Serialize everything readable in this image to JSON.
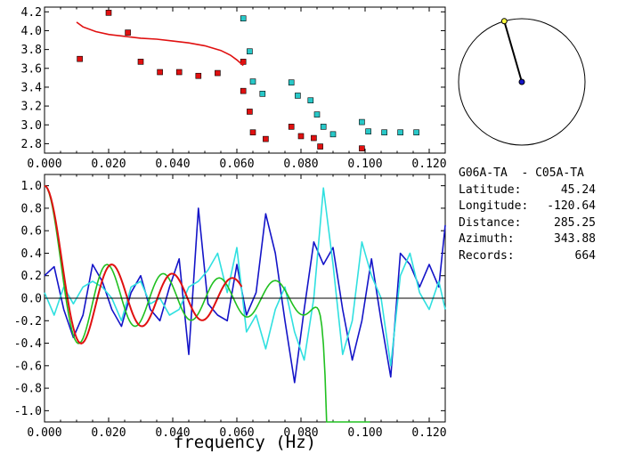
{
  "chart_data": [
    {
      "type": "scatter",
      "xlim": [
        0.0,
        0.125
      ],
      "ylim": [
        2.7,
        4.25
      ],
      "xticks": [
        "0.000",
        "0.020",
        "0.040",
        "0.060",
        "0.080",
        "0.100",
        "0.120"
      ],
      "yticks": [
        "4.2",
        "4.0",
        "3.8",
        "3.6",
        "3.4",
        "3.2",
        "3.0",
        "2.8"
      ],
      "ytick_values": [
        4.2,
        4.0,
        3.8,
        3.6,
        3.4,
        3.2,
        3.0,
        2.8
      ],
      "xtick_values": [
        0.0,
        0.02,
        0.04,
        0.06,
        0.08,
        0.1,
        0.12
      ],
      "series": [
        {
          "color": "#e01010",
          "marker": "square",
          "points": [
            [
              0.011,
              3.7
            ],
            [
              0.02,
              4.19
            ],
            [
              0.026,
              3.98
            ],
            [
              0.03,
              3.67
            ],
            [
              0.036,
              3.56
            ],
            [
              0.042,
              3.56
            ],
            [
              0.048,
              3.52
            ],
            [
              0.054,
              3.55
            ],
            [
              0.062,
              3.67
            ],
            [
              0.062,
              3.36
            ],
            [
              0.064,
              3.14
            ],
            [
              0.065,
              2.92
            ],
            [
              0.069,
              2.85
            ],
            [
              0.077,
              2.98
            ],
            [
              0.08,
              2.88
            ],
            [
              0.084,
              2.86
            ],
            [
              0.086,
              2.77
            ],
            [
              0.099,
              2.75
            ]
          ]
        },
        {
          "color": "#28c8c8",
          "marker": "square",
          "points": [
            [
              0.062,
              4.13
            ],
            [
              0.064,
              3.78
            ],
            [
              0.065,
              3.46
            ],
            [
              0.068,
              3.33
            ],
            [
              0.077,
              3.45
            ],
            [
              0.079,
              3.31
            ],
            [
              0.083,
              3.26
            ],
            [
              0.085,
              3.11
            ],
            [
              0.087,
              2.98
            ],
            [
              0.09,
              2.9
            ],
            [
              0.099,
              3.03
            ],
            [
              0.101,
              2.93
            ],
            [
              0.106,
              2.92
            ],
            [
              0.111,
              2.92
            ],
            [
              0.116,
              2.92
            ]
          ]
        },
        {
          "color": "#e01010",
          "marker": "line",
          "points": [
            [
              0.01,
              4.09
            ],
            [
              0.012,
              4.04
            ],
            [
              0.016,
              3.99
            ],
            [
              0.02,
              3.96
            ],
            [
              0.025,
              3.94
            ],
            [
              0.03,
              3.92
            ],
            [
              0.035,
              3.91
            ],
            [
              0.04,
              3.89
            ],
            [
              0.045,
              3.87
            ],
            [
              0.05,
              3.84
            ],
            [
              0.055,
              3.79
            ],
            [
              0.058,
              3.74
            ],
            [
              0.06,
              3.69
            ],
            [
              0.062,
              3.63
            ]
          ]
        }
      ]
    },
    {
      "type": "line",
      "xlim": [
        0.0,
        0.125
      ],
      "ylim": [
        -1.1,
        1.1
      ],
      "xlabel": "frequency (Hz)",
      "xticks": [
        "0.000",
        "0.020",
        "0.040",
        "0.060",
        "0.080",
        "0.100",
        "0.120"
      ],
      "xtick_values": [
        0.0,
        0.02,
        0.04,
        0.06,
        0.08,
        0.1,
        0.12
      ],
      "yticks": [
        "1.0",
        "0.8",
        "0.6",
        "0.4",
        "0.2",
        "0.0",
        "-0.2",
        "-0.4",
        "-0.6",
        "-0.8",
        "-1.0"
      ],
      "ytick_values": [
        1.0,
        0.8,
        0.6,
        0.4,
        0.2,
        0.0,
        -0.2,
        -0.4,
        -0.6,
        -0.8,
        -1.0
      ],
      "series": [
        {
          "color": "#1414c8",
          "x": [
            0.0,
            0.003,
            0.006,
            0.009,
            0.012,
            0.015,
            0.018,
            0.021,
            0.024,
            0.027,
            0.03,
            0.033,
            0.036,
            0.039,
            0.042,
            0.045,
            0.048,
            0.051,
            0.054,
            0.057,
            0.06,
            0.063,
            0.066,
            0.069,
            0.072,
            0.075,
            0.078,
            0.081,
            0.084,
            0.087,
            0.09,
            0.093,
            0.096,
            0.099,
            0.102,
            0.105,
            0.108,
            0.111,
            0.114,
            0.117,
            0.12,
            0.123,
            0.125
          ],
          "y": [
            0.2,
            0.28,
            -0.1,
            -0.35,
            -0.15,
            0.3,
            0.15,
            -0.1,
            -0.25,
            0.05,
            0.2,
            -0.1,
            -0.2,
            0.1,
            0.35,
            -0.5,
            0.8,
            -0.05,
            -0.15,
            -0.2,
            0.3,
            -0.15,
            0.05,
            0.75,
            0.4,
            -0.2,
            -0.75,
            -0.1,
            0.5,
            0.3,
            0.45,
            -0.1,
            -0.55,
            -0.2,
            0.35,
            -0.2,
            -0.7,
            0.4,
            0.3,
            0.1,
            0.3,
            0.1,
            0.65
          ]
        },
        {
          "color": "#30e0e0",
          "x": [
            0.0,
            0.003,
            0.006,
            0.009,
            0.012,
            0.015,
            0.018,
            0.021,
            0.024,
            0.027,
            0.03,
            0.033,
            0.036,
            0.039,
            0.042,
            0.045,
            0.048,
            0.051,
            0.054,
            0.057,
            0.06,
            0.063,
            0.066,
            0.069,
            0.072,
            0.075,
            0.078,
            0.081,
            0.084,
            0.087,
            0.09,
            0.093,
            0.096,
            0.099,
            0.102,
            0.105,
            0.108,
            0.111,
            0.114,
            0.117,
            0.12,
            0.123,
            0.125
          ],
          "y": [
            0.05,
            -0.15,
            0.1,
            -0.05,
            0.1,
            0.15,
            0.1,
            0.0,
            -0.2,
            0.1,
            0.15,
            -0.05,
            0.0,
            -0.15,
            -0.1,
            0.1,
            0.15,
            0.25,
            0.4,
            0.05,
            0.45,
            -0.3,
            -0.15,
            -0.45,
            -0.1,
            0.1,
            -0.3,
            -0.55,
            0.0,
            0.98,
            0.3,
            -0.5,
            -0.2,
            0.5,
            0.2,
            0.0,
            -0.6,
            0.2,
            0.4,
            0.05,
            -0.1,
            0.15,
            -0.1
          ]
        },
        {
          "color": "#20c020",
          "kind": "bessel",
          "freq_scale": 1.0,
          "xmax": 0.102
        },
        {
          "color": "#e01010",
          "kind": "bessel",
          "freq_scale": 0.93,
          "xmax": 0.062
        },
        {
          "color": "#000000",
          "kind": "zero-line",
          "y": 0.0
        }
      ]
    }
  ],
  "polar": {
    "azimuth_deg": 343.88,
    "station_color": "#ffff40",
    "center_color": "#1414c8"
  },
  "info": {
    "title": "G06A-TA  - C05A-TA",
    "rows": [
      {
        "label": "Latitude:",
        "value": "45.24"
      },
      {
        "label": "Longitude:",
        "value": "-120.64"
      },
      {
        "label": "Distance:",
        "value": "285.25"
      },
      {
        "label": "Azimuth:",
        "value": "343.88"
      },
      {
        "label": "Records:",
        "value": "664"
      }
    ]
  }
}
